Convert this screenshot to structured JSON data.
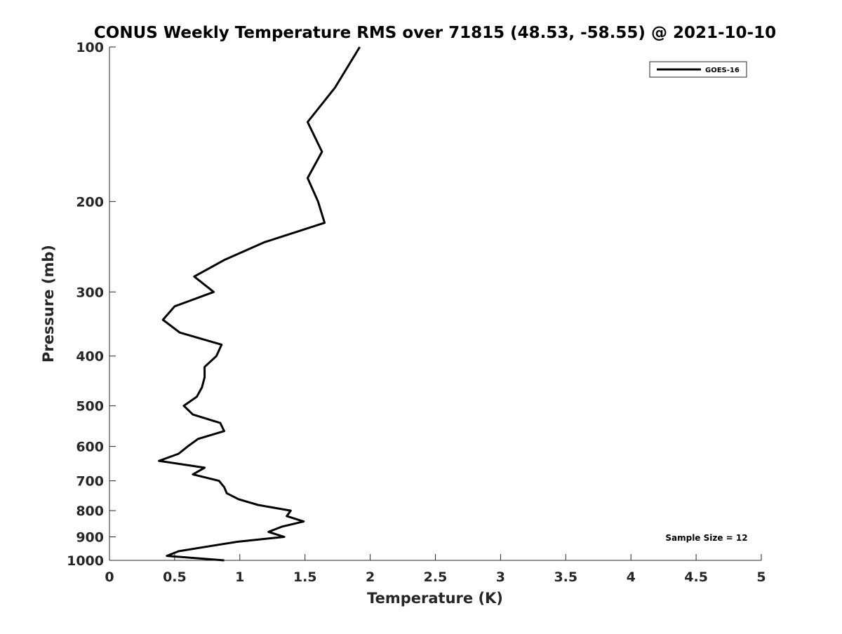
{
  "chart_data": {
    "type": "line",
    "title": "CONUS Weekly Temperature RMS over 71815 (48.53, -58.55) @ 2021-10-10",
    "xlabel": "Temperature (K)",
    "ylabel": "Pressure (mb)",
    "xlim": [
      0,
      5
    ],
    "ylim": [
      100,
      1000
    ],
    "yscale": "log",
    "yreversed": true,
    "grid": false,
    "legend_position": "top-right",
    "x_ticks": [
      "0",
      "0.5",
      "1",
      "1.5",
      "2",
      "2.5",
      "3",
      "3.5",
      "4",
      "4.5",
      "5"
    ],
    "x_tick_values": [
      0,
      0.5,
      1,
      1.5,
      2,
      2.5,
      3,
      3.5,
      4,
      4.5,
      5
    ],
    "y_ticks": [
      "100",
      "200",
      "300",
      "400",
      "500",
      "600",
      "700",
      "800",
      "900",
      "1000"
    ],
    "y_tick_values": [
      100,
      200,
      300,
      400,
      500,
      600,
      700,
      800,
      900,
      1000
    ],
    "series": [
      {
        "name": "GOES-16",
        "color": "#000000",
        "pressure": [
          100,
          120,
          140,
          160,
          180,
          200,
          220,
          240,
          260,
          280,
          300,
          320,
          340,
          360,
          380,
          400,
          420,
          440,
          460,
          480,
          500,
          520,
          540,
          560,
          580,
          600,
          620,
          640,
          660,
          680,
          700,
          720,
          740,
          760,
          780,
          800,
          820,
          840,
          860,
          880,
          900,
          920,
          940,
          960,
          980,
          1000
        ],
        "temperature": [
          1.92,
          1.73,
          1.52,
          1.63,
          1.52,
          1.6,
          1.65,
          1.19,
          0.88,
          0.65,
          0.8,
          0.5,
          0.41,
          0.54,
          0.86,
          0.82,
          0.73,
          0.73,
          0.71,
          0.67,
          0.57,
          0.64,
          0.85,
          0.88,
          0.68,
          0.6,
          0.53,
          0.38,
          0.73,
          0.64,
          0.84,
          0.88,
          0.9,
          0.99,
          1.14,
          1.39,
          1.36,
          1.49,
          1.32,
          1.22,
          1.34,
          0.98,
          0.75,
          0.53,
          0.44,
          0.88
        ]
      }
    ],
    "annotation": "Sample Size = 12"
  }
}
